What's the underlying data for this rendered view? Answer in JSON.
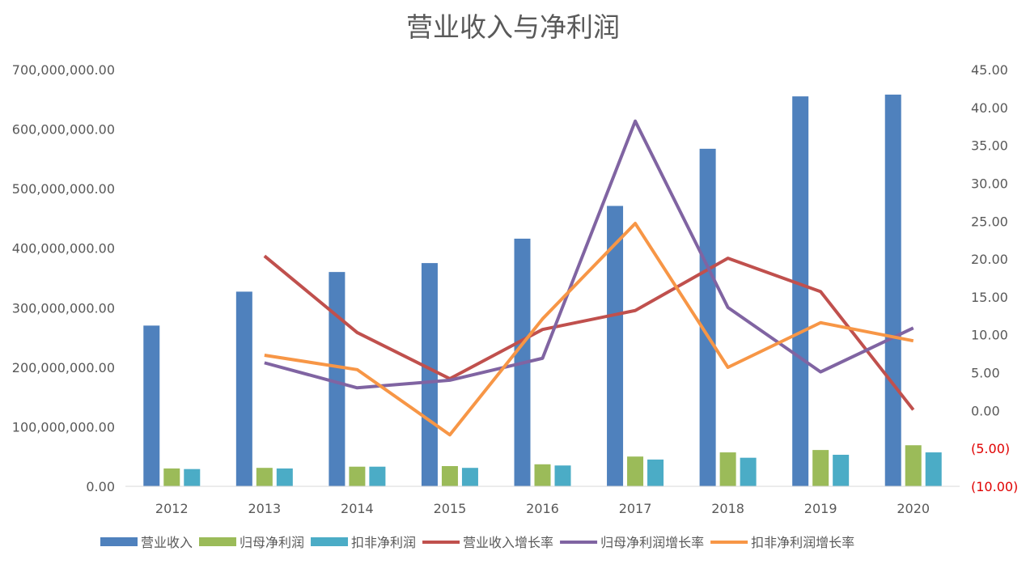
{
  "chart_data": {
    "type": "bar",
    "title": "营业收入与净利润",
    "categories": [
      "2012",
      "2013",
      "2014",
      "2015",
      "2016",
      "2017",
      "2018",
      "2019",
      "2020"
    ],
    "left_axis": {
      "ylim": [
        0,
        700000000
      ],
      "ticks": [
        "0.00",
        "100,000,000.00",
        "200,000,000.00",
        "300,000,000.00",
        "400,000,000.00",
        "500,000,000.00",
        "600,000,000.00",
        "700,000,000.00"
      ]
    },
    "right_axis": {
      "ylim": [
        -10,
        45
      ],
      "ticks": [
        "(10.00)",
        "(5.00)",
        "0.00",
        "5.00",
        "10.00",
        "15.00",
        "20.00",
        "25.00",
        "30.00",
        "35.00",
        "40.00",
        "45.00"
      ],
      "negative_color": "#e00000"
    },
    "bar_series": [
      {
        "name": "营业收入",
        "color": "#4f81bd",
        "values": [
          270000000,
          327000000,
          360000000,
          375000000,
          416000000,
          471000000,
          567000000,
          655000000,
          658000000
        ]
      },
      {
        "name": "归母净利润",
        "color": "#9bbb59",
        "values": [
          30000000,
          31000000,
          33000000,
          34000000,
          37000000,
          50000000,
          57000000,
          61000000,
          69000000
        ]
      },
      {
        "name": "扣非净利润",
        "color": "#4bacc6",
        "values": [
          29000000,
          30000000,
          33000000,
          31000000,
          35000000,
          45000000,
          48000000,
          53000000,
          57000000
        ]
      }
    ],
    "line_series": [
      {
        "name": "营业收入增长率",
        "color": "#c0504d",
        "values": [
          null,
          20.4,
          10.3,
          4.2,
          10.7,
          13.2,
          20.1,
          15.7,
          0.1
        ]
      },
      {
        "name": "归母净利润增长率",
        "color": "#8064a2",
        "values": [
          null,
          6.3,
          3.0,
          4.0,
          6.9,
          38.2,
          13.6,
          5.1,
          10.9
        ]
      },
      {
        "name": "扣非净利润增长率",
        "color": "#f79646",
        "values": [
          null,
          7.3,
          5.4,
          -3.2,
          12.1,
          24.7,
          5.7,
          11.6,
          9.2
        ]
      }
    ],
    "legend_position": "bottom",
    "grid": false
  }
}
